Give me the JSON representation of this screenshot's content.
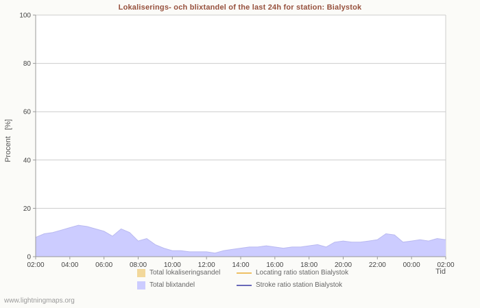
{
  "page": {
    "watermark": "www.lightningmaps.org"
  },
  "chart_data": {
    "type": "area",
    "title": "Lokaliserings- och blixtandel of the last 24h for station: Bialystok",
    "ylabel": "Procent   [%]",
    "xlabel": "Tid",
    "ylim": [
      0,
      100
    ],
    "yticks": [
      0,
      20,
      40,
      60,
      80,
      100
    ],
    "xticks": [
      "02:00",
      "04:00",
      "06:00",
      "08:00",
      "10:00",
      "12:00",
      "14:00",
      "16:00",
      "18:00",
      "20:00",
      "22:00",
      "00:00",
      "02:00"
    ],
    "sample_interval_minutes": 30,
    "grid": true,
    "legend_position": "bottom",
    "colors": {
      "grid": "#cccccc",
      "axis": "#999999",
      "tick_text": "#444444",
      "title": "#96503c",
      "area_fill": "#ccccff",
      "area_edge": "#b9b9f0"
    },
    "series": [
      {
        "name": "Total lokaliseringsandel",
        "type": "area",
        "color": "#f2d89b",
        "values": []
      },
      {
        "name": "Total blixtandel",
        "type": "area",
        "color": "#ccccff",
        "values": [
          8,
          9.5,
          10,
          11,
          12,
          13,
          12.5,
          11.5,
          10.5,
          8.5,
          11.5,
          10,
          6.5,
          7.5,
          5,
          3.5,
          2.5,
          2.5,
          2,
          2,
          2,
          1.5,
          2.5,
          3,
          3.5,
          4,
          4,
          4.5,
          4,
          3.5,
          4,
          4,
          4.5,
          5,
          4,
          6,
          6.5,
          6,
          6,
          6.5,
          7,
          9.5,
          9,
          6,
          6.5,
          7,
          6.5,
          7.5,
          7
        ]
      },
      {
        "name": "Locating ratio station Bialystok",
        "type": "line",
        "color": "#eec064",
        "values": []
      },
      {
        "name": "Stroke ratio station Bialystok",
        "type": "line",
        "color": "#6868b8",
        "values": []
      }
    ]
  }
}
